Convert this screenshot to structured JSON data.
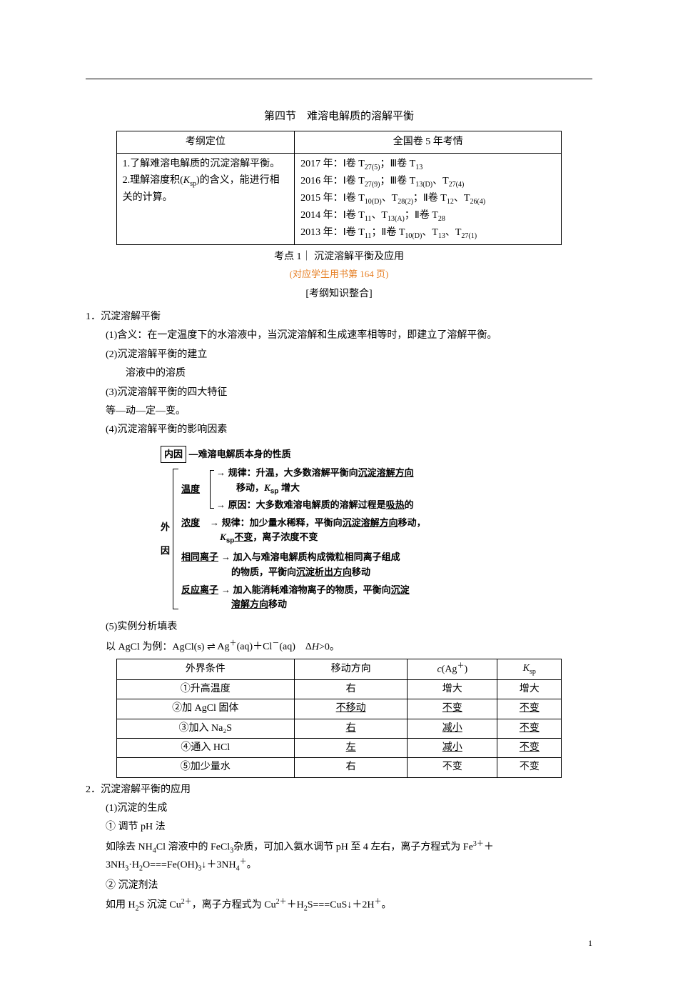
{
  "section_title": "第四节　难溶电解质的溶解平衡",
  "outline_table": {
    "header_left": "考纲定位",
    "header_right": "全国卷 5 年考情",
    "left_text": "1.了解难溶电解质的沉淀溶解平衡。\n2.理解溶度积(Ksp)的含义，能进行相关的计算。",
    "right_lines": [
      "2017 年：Ⅰ卷 T27(5)；Ⅲ卷 T13",
      "2016 年：Ⅰ卷 T27(9)；Ⅲ卷 T13(D)、T27(4)",
      "2015 年：Ⅰ卷 T10(D)、T28(2)；Ⅱ卷 T12、T26(4)",
      "2014 年：Ⅰ卷 T11、T13(A)；Ⅱ卷 T28",
      "2013 年：Ⅰ卷 T11；Ⅱ卷 T10(D)、T13、T27(1)"
    ]
  },
  "topic1": "考点 1｜ 沉淀溶解平衡及应用",
  "subtopic1": "(对应学生用书第 164 页)",
  "bracket_heading": "[考纲知识整合]",
  "h1_1": "1．沉淀溶解平衡",
  "p1_1": "(1)含义：在一定温度下的水溶液中，当沉淀溶解和生成速率相等时，即建立了溶解平衡。",
  "p1_2": "(2)沉淀溶解平衡的建立",
  "p1_2b": "溶液中的溶质",
  "p1_3": "(3)沉淀溶解平衡的四大特征",
  "p1_3b": "等—动—定—变。",
  "p1_4": "(4)沉淀溶解平衡的影响因素",
  "diagram": {
    "inner": "内因",
    "inner_text": "难溶电解质本身的性质",
    "outer_label1": "外",
    "outer_label2": "因",
    "temp_label": "温度",
    "temp_rule": "规律：升温，大多数溶解平衡向",
    "temp_rule_ul": "沉淀溶解方向",
    "temp_rule2": "移动，Ksp 增大",
    "temp_reason": "原因：大多数难溶电解质的溶解过程是",
    "temp_reason_ul": "吸热",
    "temp_reason2": "的",
    "conc_label": "浓度",
    "conc_rule": "规律：加少量水稀释，平衡向",
    "conc_rule_ul": "沉淀溶解方向",
    "conc_rule2": "移动，",
    "conc_rule3": "Ksp",
    "conc_rule3_ul": "不变",
    "conc_rule4": "，离子浓度不变",
    "same_label": "相同离子",
    "same_rule": "加入与难溶电解质构成微粒相同离子组成的物质，平衡向",
    "same_rule_ul": "沉淀析出方向",
    "same_rule2": "移动",
    "react_label": "反应离子",
    "react_rule": "加入能消耗难溶物离子的物质，平衡向",
    "react_rule_ul": "沉淀溶解方向",
    "react_rule2": "移动"
  },
  "p1_5": "(5)实例分析填表",
  "example_intro_1": "以 AgCl 为例：AgCl(s)",
  "example_intro_2": "Ag⁺(aq)＋Cl⁻(aq)　Δ",
  "example_intro_h": "H",
  "example_intro_3": ">0。",
  "example_table": {
    "headers": [
      "外界条件",
      "移动方向",
      "c(Ag⁺)",
      "Ksp"
    ],
    "rows": [
      {
        "cond": "①升高温度",
        "dir": "右",
        "c": "增大",
        "k": "增大",
        "ul_dir": false,
        "ul_c": false,
        "ul_k": false
      },
      {
        "cond": "②加 AgCl 固体",
        "dir": "不移动",
        "c": "不变",
        "k": "不变",
        "ul_dir": true,
        "ul_c": true,
        "ul_k": true
      },
      {
        "cond": "③加入 Na₂S",
        "dir": "右",
        "c": "减小",
        "k": "不变",
        "ul_dir": true,
        "ul_c": true,
        "ul_k": true
      },
      {
        "cond": "④通入 HCl",
        "dir": "左",
        "c": "减小",
        "k": "不变",
        "ul_dir": true,
        "ul_c": true,
        "ul_k": true
      },
      {
        "cond": "⑤加少量水",
        "dir": "右",
        "c": "不变",
        "k": "不变",
        "ul_dir": false,
        "ul_c": false,
        "ul_k": false
      }
    ]
  },
  "h1_2": "2．沉淀溶解平衡的应用",
  "p2_1": "(1)沉淀的生成",
  "p2_1a": "① 调节 pH 法",
  "p2_1a_text": "如除去 NH₄Cl 溶液中的 FeCl₃杂质，可加入氨水调节 pH 至 4 左右，离子方程式为 Fe³⁺＋3NH₃·H₂O===Fe(OH)₃↓＋3NH₄⁺。",
  "p2_1b": "② 沉淀剂法",
  "p2_1b_text": "如用 H₂S 沉淀 Cu²⁺，离子方程式为 Cu²⁺＋H₂S===CuS↓＋2H⁺。",
  "page_number": "1",
  "colors": {
    "text": "#000000",
    "accent": "#e67e22",
    "bg": "#ffffff"
  }
}
